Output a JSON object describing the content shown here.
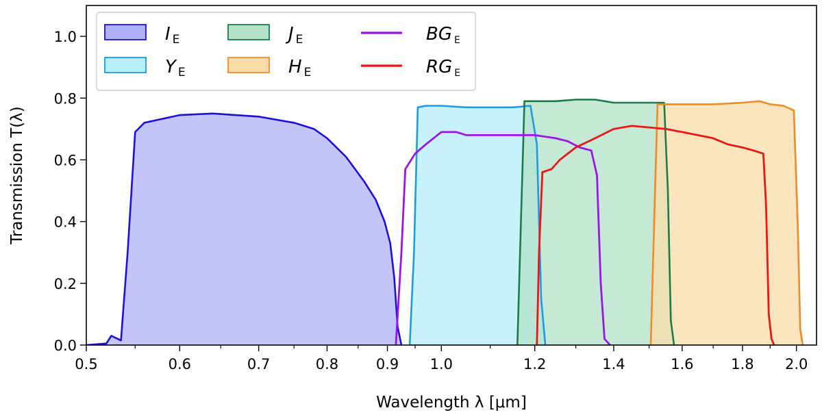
{
  "chart_data": {
    "type": "area",
    "title": "",
    "xlabel": "Wavelength  λ [μm]",
    "ylabel": "Transmission  T(λ)",
    "xscale": "log",
    "xlim": [
      0.5,
      2.08
    ],
    "ylim": [
      0.0,
      1.1
    ],
    "x_ticks": [
      0.5,
      0.6,
      0.7,
      0.8,
      0.9,
      1.0,
      1.2,
      1.4,
      1.6,
      1.8,
      2.0
    ],
    "x_tick_labels": [
      "0.5",
      "0.6",
      "0.7",
      "0.8",
      "0.9",
      "1.0",
      "1.2",
      "1.4",
      "1.6",
      "1.8",
      "2.0"
    ],
    "y_ticks": [
      0.0,
      0.2,
      0.4,
      0.6,
      0.8,
      1.0
    ],
    "y_tick_labels": [
      "0.0",
      "0.2",
      "0.4",
      "0.6",
      "0.8",
      "1.0"
    ],
    "legend_position": "top-left",
    "legend_columns": 3,
    "series": [
      {
        "name": "I",
        "subscript": "E",
        "style": "filled",
        "line_color": "#1a10d8",
        "fill_color": "#b0b0f6",
        "x": [
          0.5,
          0.52,
          0.525,
          0.535,
          0.542,
          0.55,
          0.56,
          0.6,
          0.64,
          0.7,
          0.75,
          0.78,
          0.8,
          0.83,
          0.86,
          0.88,
          0.895,
          0.905,
          0.912,
          0.918,
          0.925
        ],
        "y": [
          0.0,
          0.005,
          0.03,
          0.015,
          0.3,
          0.69,
          0.72,
          0.745,
          0.75,
          0.74,
          0.72,
          0.7,
          0.67,
          0.61,
          0.53,
          0.47,
          0.4,
          0.33,
          0.22,
          0.06,
          0.0
        ]
      },
      {
        "name": "Y",
        "subscript": "E",
        "style": "filled",
        "line_color": "#1c9ae6",
        "fill_color": "#b6eefa",
        "x": [
          0.94,
          0.948,
          0.955,
          0.97,
          1.0,
          1.05,
          1.1,
          1.15,
          1.19,
          1.205,
          1.215,
          1.225
        ],
        "y": [
          0.0,
          0.3,
          0.77,
          0.775,
          0.775,
          0.77,
          0.77,
          0.77,
          0.775,
          0.65,
          0.15,
          0.0
        ]
      },
      {
        "name": "J",
        "subscript": "E",
        "style": "filled",
        "line_color": "#1a7a4a",
        "fill_color": "#b3e2c8",
        "x": [
          1.16,
          1.168,
          1.176,
          1.2,
          1.25,
          1.3,
          1.35,
          1.4,
          1.45,
          1.5,
          1.545,
          1.556,
          1.565,
          1.575
        ],
        "y": [
          0.0,
          0.4,
          0.79,
          0.79,
          0.79,
          0.795,
          0.795,
          0.785,
          0.785,
          0.785,
          0.785,
          0.5,
          0.08,
          0.0
        ]
      },
      {
        "name": "H",
        "subscript": "E",
        "style": "filled",
        "line_color": "#f08a24",
        "fill_color": "#fadcaa",
        "x": [
          1.505,
          1.515,
          1.525,
          1.55,
          1.6,
          1.7,
          1.8,
          1.86,
          1.9,
          1.95,
          1.99,
          2.005,
          2.015,
          2.025
        ],
        "y": [
          0.0,
          0.4,
          0.78,
          0.78,
          0.78,
          0.78,
          0.785,
          0.79,
          0.78,
          0.775,
          0.76,
          0.4,
          0.05,
          0.0
        ]
      },
      {
        "name": "BG",
        "subscript": "E",
        "style": "line",
        "line_color": "#9a14e6",
        "x": [
          0.915,
          0.925,
          0.932,
          0.95,
          0.97,
          1.0,
          1.03,
          1.05,
          1.1,
          1.15,
          1.2,
          1.25,
          1.28,
          1.31,
          1.34,
          1.355,
          1.365,
          1.375,
          1.39
        ],
        "y": [
          0.0,
          0.3,
          0.57,
          0.62,
          0.65,
          0.69,
          0.69,
          0.68,
          0.68,
          0.68,
          0.68,
          0.67,
          0.66,
          0.64,
          0.63,
          0.55,
          0.2,
          0.02,
          0.0
        ]
      },
      {
        "name": "RG",
        "subscript": "E",
        "style": "line",
        "line_color": "#ee1414",
        "x": [
          1.205,
          1.21,
          1.218,
          1.24,
          1.26,
          1.3,
          1.35,
          1.4,
          1.45,
          1.5,
          1.55,
          1.6,
          1.65,
          1.7,
          1.75,
          1.8,
          1.84,
          1.875,
          1.885,
          1.895,
          1.905,
          1.915
        ],
        "y": [
          0.0,
          0.3,
          0.56,
          0.57,
          0.6,
          0.64,
          0.67,
          0.7,
          0.71,
          0.705,
          0.7,
          0.69,
          0.68,
          0.67,
          0.65,
          0.64,
          0.63,
          0.62,
          0.45,
          0.1,
          0.02,
          0.0
        ]
      }
    ]
  }
}
